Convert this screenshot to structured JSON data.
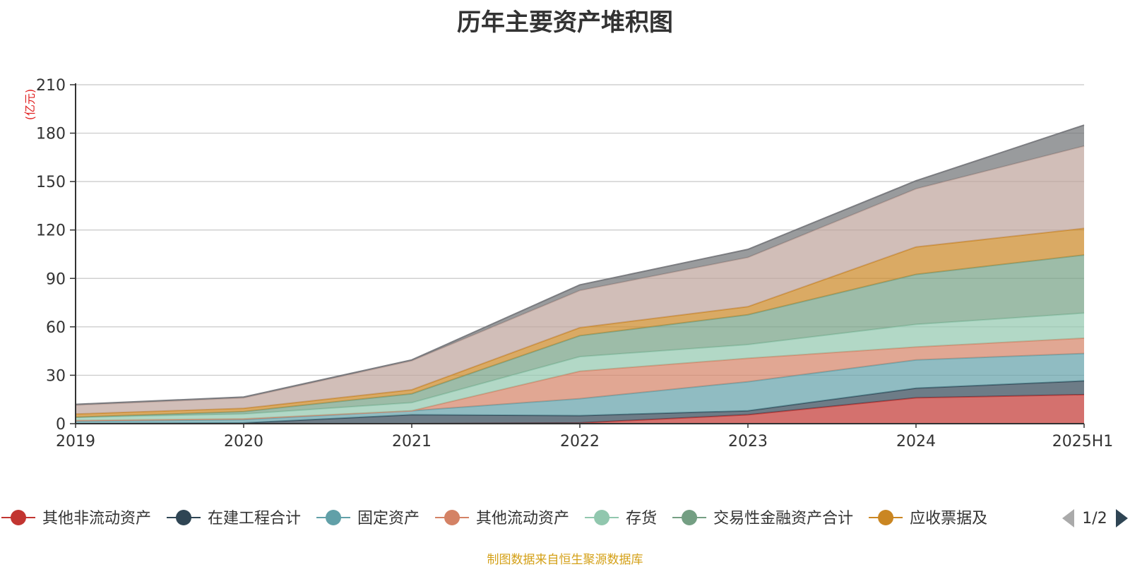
{
  "chart_data": {
    "type": "area",
    "stacked": true,
    "title": "历年主要资产堆积图",
    "unit_label": "(亿元)",
    "categories": [
      "2019",
      "2020",
      "2021",
      "2022",
      "2023",
      "2024",
      "2025H1"
    ],
    "ylim": [
      0,
      210
    ],
    "yticks": [
      0,
      30,
      60,
      90,
      120,
      150,
      180,
      210
    ],
    "grid": true,
    "legend_position": "bottom",
    "legend_page": "1/2",
    "source_text": "制图数据来自恒生聚源数据库",
    "series": [
      {
        "name": "其他非流动资产",
        "color": "#c23531",
        "values": [
          0,
          0,
          0,
          0.5,
          5.5,
          16,
          18
        ]
      },
      {
        "name": "在建工程合计",
        "color": "#2f4554",
        "values": [
          0,
          0.5,
          5.5,
          4.5,
          2.5,
          6,
          8.5
        ]
      },
      {
        "name": "固定资产",
        "color": "#61a0a8",
        "values": [
          1.5,
          2,
          2.5,
          10.5,
          18,
          17.5,
          17
        ]
      },
      {
        "name": "其他流动资产",
        "color": "#d48265",
        "values": [
          0.5,
          0.5,
          0,
          17,
          14.5,
          8,
          9.5
        ]
      },
      {
        "name": "存货",
        "color": "#91c7ae",
        "values": [
          2,
          3,
          5,
          9,
          8.5,
          14,
          15.5
        ]
      },
      {
        "name": "交易性金融资产合计",
        "color": "#749f83",
        "values": [
          0,
          1.5,
          5.5,
          13,
          18.5,
          31,
          36
        ]
      },
      {
        "name": "应收票据及",
        "color": "#ca8622",
        "values": [
          2,
          2,
          2.5,
          5,
          5,
          17,
          16.5
        ]
      },
      {
        "name": "",
        "color": "#bda29a",
        "values": [
          5.5,
          6.5,
          18,
          23,
          30.5,
          36,
          51
        ]
      },
      {
        "name": "",
        "color": "#6e7074",
        "values": [
          0.5,
          0.5,
          0.5,
          3.5,
          5,
          5,
          13
        ]
      }
    ]
  }
}
